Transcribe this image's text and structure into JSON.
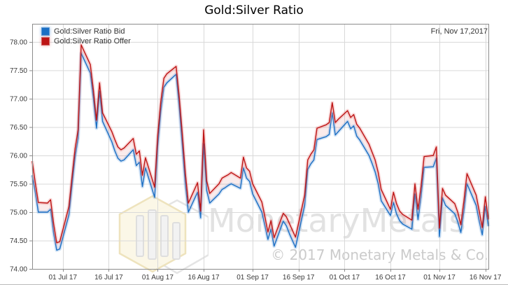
{
  "header": {
    "title": "Gold:Silver Ratio"
  },
  "annotations": {
    "date_label": "Fri, Nov 17,2017"
  },
  "legend": {
    "items": [
      {
        "label": "Gold:Silver Ratio Bid",
        "color": "#1b6fc4"
      },
      {
        "label": "Gold:Silver Ratio Offer",
        "color": "#bd1414"
      }
    ]
  },
  "watermark": {
    "brand": "MonetaryMetals",
    "copyright": "© 2017 Monetary Metals & Co.",
    "logo": "monetary-metals-cube-logo"
  },
  "chart_data": {
    "type": "line",
    "title": "Gold:Silver Ratio",
    "xlabel": "",
    "ylabel": "",
    "grid": true,
    "legend_position": "top-left",
    "ylim": [
      74.0,
      78.32
    ],
    "yticks": [
      74.0,
      74.5,
      75.0,
      75.5,
      76.0,
      76.5,
      77.0,
      77.5,
      78.0
    ],
    "xticks": [
      {
        "date": "2017-07-01",
        "label": "01 Jul 17"
      },
      {
        "date": "2017-07-16",
        "label": "16 Jul 17"
      },
      {
        "date": "2017-08-01",
        "label": "01 Aug 17"
      },
      {
        "date": "2017-08-16",
        "label": "16 Aug 17"
      },
      {
        "date": "2017-09-01",
        "label": "01 Sep 17"
      },
      {
        "date": "2017-09-16",
        "label": "16 Sep 17"
      },
      {
        "date": "2017-10-01",
        "label": "01 Oct 17"
      },
      {
        "date": "2017-10-16",
        "label": "16 Oct 17"
      },
      {
        "date": "2017-11-01",
        "label": "01 Nov 17"
      },
      {
        "date": "2017-11-16",
        "label": "16 Nov 17"
      }
    ],
    "x": [
      "2017-06-21",
      "2017-06-22",
      "2017-06-23",
      "2017-06-26",
      "2017-06-27",
      "2017-06-28",
      "2017-06-29",
      "2017-06-30",
      "2017-07-03",
      "2017-07-04",
      "2017-07-05",
      "2017-07-06",
      "2017-07-07",
      "2017-07-10",
      "2017-07-11",
      "2017-07-12",
      "2017-07-13",
      "2017-07-14",
      "2017-07-17",
      "2017-07-18",
      "2017-07-19",
      "2017-07-20",
      "2017-07-21",
      "2017-07-24",
      "2017-07-25",
      "2017-07-26",
      "2017-07-27",
      "2017-07-28",
      "2017-07-31",
      "2017-08-01",
      "2017-08-02",
      "2017-08-03",
      "2017-08-04",
      "2017-08-07",
      "2017-08-08",
      "2017-08-09",
      "2017-08-10",
      "2017-08-11",
      "2017-08-14",
      "2017-08-15",
      "2017-08-16",
      "2017-08-17",
      "2017-08-18",
      "2017-08-21",
      "2017-08-22",
      "2017-08-23",
      "2017-08-24",
      "2017-08-25",
      "2017-08-28",
      "2017-08-29",
      "2017-08-30",
      "2017-08-31",
      "2017-09-01",
      "2017-09-04",
      "2017-09-05",
      "2017-09-06",
      "2017-09-07",
      "2017-09-08",
      "2017-09-11",
      "2017-09-12",
      "2017-09-13",
      "2017-09-14",
      "2017-09-15",
      "2017-09-18",
      "2017-09-19",
      "2017-09-20",
      "2017-09-21",
      "2017-09-22",
      "2017-09-25",
      "2017-09-26",
      "2017-09-27",
      "2017-09-28",
      "2017-09-29",
      "2017-10-02",
      "2017-10-03",
      "2017-10-04",
      "2017-10-05",
      "2017-10-06",
      "2017-10-09",
      "2017-10-10",
      "2017-10-11",
      "2017-10-12",
      "2017-10-13",
      "2017-10-16",
      "2017-10-17",
      "2017-10-18",
      "2017-10-19",
      "2017-10-20",
      "2017-10-23",
      "2017-10-24",
      "2017-10-25",
      "2017-10-26",
      "2017-10-27",
      "2017-10-30",
      "2017-10-31",
      "2017-11-01",
      "2017-11-02",
      "2017-11-03",
      "2017-11-06",
      "2017-11-07",
      "2017-11-08",
      "2017-11-09",
      "2017-11-10",
      "2017-11-13",
      "2017-11-14",
      "2017-11-15",
      "2017-11-16",
      "2017-11-17"
    ],
    "series": [
      {
        "name": "Gold:Silver Ratio Bid",
        "color": "#1b6fc4",
        "halo": "rgba(110,165,225,0.30)",
        "values": [
          75.65,
          75.35,
          75.0,
          75.0,
          75.05,
          74.63,
          74.33,
          74.35,
          74.95,
          75.47,
          75.97,
          76.3,
          77.8,
          77.45,
          77.0,
          76.48,
          77.13,
          76.6,
          76.24,
          76.08,
          75.95,
          75.9,
          75.92,
          76.1,
          75.82,
          75.88,
          75.45,
          75.78,
          75.26,
          76.17,
          76.78,
          77.2,
          77.28,
          77.43,
          76.88,
          76.2,
          75.5,
          75.0,
          75.35,
          74.9,
          76.2,
          75.38,
          75.16,
          75.32,
          75.4,
          75.43,
          75.47,
          75.5,
          75.42,
          75.78,
          75.6,
          75.54,
          75.32,
          75.0,
          74.76,
          74.52,
          74.7,
          74.4,
          74.84,
          74.76,
          74.62,
          74.5,
          74.38,
          75.12,
          75.75,
          75.85,
          75.92,
          76.28,
          76.33,
          76.37,
          76.75,
          76.36,
          76.42,
          76.6,
          76.47,
          76.52,
          76.34,
          76.27,
          76.0,
          75.86,
          75.71,
          75.5,
          75.2,
          74.94,
          75.17,
          74.97,
          74.85,
          74.79,
          74.7,
          75.32,
          74.87,
          75.27,
          75.79,
          75.8,
          75.95,
          74.57,
          75.25,
          75.12,
          74.97,
          74.83,
          74.64,
          75.02,
          75.5,
          75.12,
          74.84,
          74.6,
          75.1,
          74.75
        ]
      },
      {
        "name": "Gold:Silver Ratio Offer",
        "color": "#bd1414",
        "halo": "rgba(235,120,120,0.28)",
        "values": [
          75.9,
          75.52,
          75.17,
          75.16,
          75.22,
          74.8,
          74.46,
          74.48,
          75.1,
          75.62,
          76.12,
          76.45,
          77.95,
          77.6,
          77.15,
          76.62,
          77.28,
          76.75,
          76.42,
          76.28,
          76.15,
          76.1,
          76.13,
          76.3,
          76.02,
          76.08,
          75.65,
          75.96,
          75.44,
          76.35,
          76.95,
          77.36,
          77.44,
          77.57,
          77.05,
          76.4,
          75.7,
          75.16,
          75.52,
          75.02,
          76.45,
          75.55,
          75.33,
          75.5,
          75.6,
          75.63,
          75.66,
          75.7,
          75.6,
          75.97,
          75.78,
          75.72,
          75.5,
          75.18,
          74.92,
          74.65,
          74.85,
          74.55,
          74.98,
          74.92,
          74.8,
          74.68,
          74.56,
          75.3,
          75.92,
          76.02,
          76.1,
          76.48,
          76.54,
          76.58,
          76.93,
          76.58,
          76.64,
          76.79,
          76.67,
          76.72,
          76.55,
          76.48,
          76.2,
          76.06,
          75.92,
          75.7,
          75.4,
          75.05,
          75.35,
          75.15,
          75.02,
          74.96,
          74.86,
          75.5,
          75.05,
          75.45,
          75.98,
          76.0,
          76.15,
          74.72,
          75.42,
          75.3,
          75.15,
          75.0,
          74.78,
          75.2,
          75.68,
          75.3,
          75.02,
          74.73,
          75.27,
          74.87
        ]
      }
    ],
    "band_fill": "rgba(205,60,60,0.10)",
    "annotation": "Fri, Nov 17,2017"
  }
}
